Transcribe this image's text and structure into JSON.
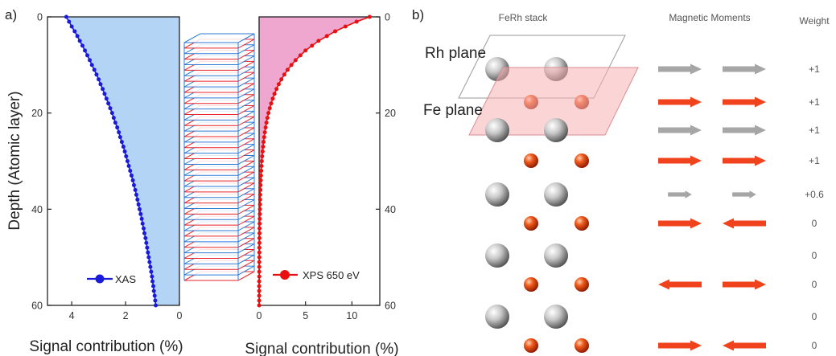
{
  "panel_a_label": "a)",
  "panel_b_label": "b)",
  "chart_data": [
    {
      "type": "area",
      "name": "xas-panel",
      "xlabel": "Signal contribution (%)",
      "ylabel": "Depth (Atomic layer)",
      "x_ticks": [
        4,
        2,
        0
      ],
      "y_ticks": [
        0,
        20,
        40,
        60
      ],
      "xlim": [
        4.9,
        0
      ],
      "ylim": [
        0,
        60
      ],
      "fill_color": "#b3d4f5",
      "series": [
        {
          "name": "XAS",
          "color": "#1a1adb",
          "depth": [
            0,
            1,
            2,
            3,
            4,
            5,
            6,
            7,
            8,
            9,
            10,
            11,
            12,
            13,
            14,
            15,
            16,
            17,
            18,
            19,
            20,
            21,
            22,
            23,
            24,
            25,
            26,
            27,
            28,
            29,
            30,
            31,
            32,
            33,
            34,
            35,
            36,
            37,
            38,
            39,
            40,
            41,
            42,
            43,
            44,
            45,
            46,
            47,
            48,
            49,
            50,
            51,
            52,
            53,
            54,
            55,
            56,
            57,
            58,
            59,
            60
          ],
          "values": [
            4.2,
            4.1,
            4.0,
            3.89,
            3.79,
            3.7,
            3.6,
            3.51,
            3.42,
            3.33,
            3.25,
            3.16,
            3.08,
            3.0,
            2.93,
            2.85,
            2.78,
            2.71,
            2.64,
            2.57,
            2.5,
            2.44,
            2.38,
            2.31,
            2.25,
            2.2,
            2.14,
            2.08,
            2.03,
            1.98,
            1.93,
            1.88,
            1.83,
            1.78,
            1.73,
            1.69,
            1.64,
            1.6,
            1.56,
            1.52,
            1.48,
            1.44,
            1.4,
            1.37,
            1.33,
            1.3,
            1.26,
            1.23,
            1.2,
            1.17,
            1.14,
            1.11,
            1.08,
            1.05,
            1.02,
            1.0,
            0.97,
            0.95,
            0.92,
            0.9,
            0.88
          ]
        }
      ]
    },
    {
      "type": "area",
      "name": "xps-panel",
      "xlabel": "Signal contribution (%)",
      "ylabel": "",
      "x_ticks": [
        0,
        5,
        10
      ],
      "y_ticks": [
        0,
        20,
        40,
        60
      ],
      "xlim": [
        0,
        13
      ],
      "ylim": [
        0,
        60
      ],
      "fill_color": "#efa6cf",
      "series": [
        {
          "name": "XPS 650 eV",
          "color": "#e81010",
          "depth": [
            0,
            1,
            2,
            3,
            4,
            5,
            6,
            7,
            8,
            9,
            10,
            11,
            12,
            13,
            14,
            15,
            16,
            17,
            18,
            19,
            20,
            21,
            22,
            23,
            24,
            25,
            26,
            27,
            28,
            29,
            30,
            31,
            32,
            33,
            34,
            35,
            36,
            37,
            38,
            39,
            40,
            41,
            42,
            43,
            44,
            45,
            46,
            47,
            48,
            49,
            50,
            51,
            52,
            53,
            54,
            55,
            56,
            57,
            58,
            59,
            60
          ],
          "values": [
            11.9,
            10.5,
            9.3,
            8.2,
            7.3,
            6.4,
            5.7,
            5.0,
            4.45,
            3.93,
            3.48,
            3.07,
            2.72,
            2.4,
            2.12,
            1.88,
            1.66,
            1.47,
            1.3,
            1.15,
            1.01,
            0.9,
            0.79,
            0.7,
            0.62,
            0.55,
            0.48,
            0.43,
            0.38,
            0.33,
            0.29,
            0.26,
            0.23,
            0.2,
            0.18,
            0.16,
            0.14,
            0.12,
            0.11,
            0.1,
            0.09,
            0.08,
            0.07,
            0.06,
            0.05,
            0.05,
            0.04,
            0.04,
            0.03,
            0.03,
            0.03,
            0.02,
            0.02,
            0.02,
            0.02,
            0.01,
            0.01,
            0.01,
            0.01,
            0.01,
            0.01
          ]
        }
      ]
    }
  ],
  "stack": {
    "layers": 44,
    "colors": [
      "#2e7bd6",
      "#e8232b"
    ]
  },
  "panel_b": {
    "col_stack": "FeRh stack",
    "col_moments": "Magnetic Moments",
    "col_weight": "Weight",
    "rh_plane_label": "Rh plane",
    "fe_plane_label": "Fe plane",
    "rows": [
      {
        "atom": "Rh",
        "arrow_color": "#a6a6a6",
        "left": "right",
        "right": "right",
        "scale": 1.0,
        "weight": "+1"
      },
      {
        "atom": "Fe",
        "arrow_color": "#f0421c",
        "left": "right",
        "right": "right",
        "scale": 1.0,
        "weight": "+1"
      },
      {
        "atom": "Rh",
        "arrow_color": "#a6a6a6",
        "left": "right",
        "right": "right",
        "scale": 1.0,
        "weight": "+1"
      },
      {
        "atom": "Fe",
        "arrow_color": "#f0421c",
        "left": "right",
        "right": "right",
        "scale": 1.0,
        "weight": "+1"
      },
      {
        "atom": "Rh",
        "arrow_color": "#a6a6a6",
        "left": "right",
        "right": "right",
        "scale": 0.55,
        "weight": "+0.6"
      },
      {
        "atom": "Fe",
        "arrow_color": "#f0421c",
        "left": "right",
        "right": "left",
        "scale": 1.0,
        "weight": "0"
      },
      {
        "atom": "Rh",
        "arrow_color": "#a6a6a6",
        "left": "none",
        "right": "none",
        "scale": 0,
        "weight": "0"
      },
      {
        "atom": "Fe",
        "arrow_color": "#f0421c",
        "left": "left",
        "right": "right",
        "scale": 1.0,
        "weight": "0"
      },
      {
        "atom": "Rh",
        "arrow_color": "#a6a6a6",
        "left": "none",
        "right": "none",
        "scale": 0,
        "weight": "0"
      },
      {
        "atom": "Fe",
        "arrow_color": "#f0421c",
        "left": "right",
        "right": "left",
        "scale": 1.0,
        "weight": "0"
      }
    ]
  }
}
